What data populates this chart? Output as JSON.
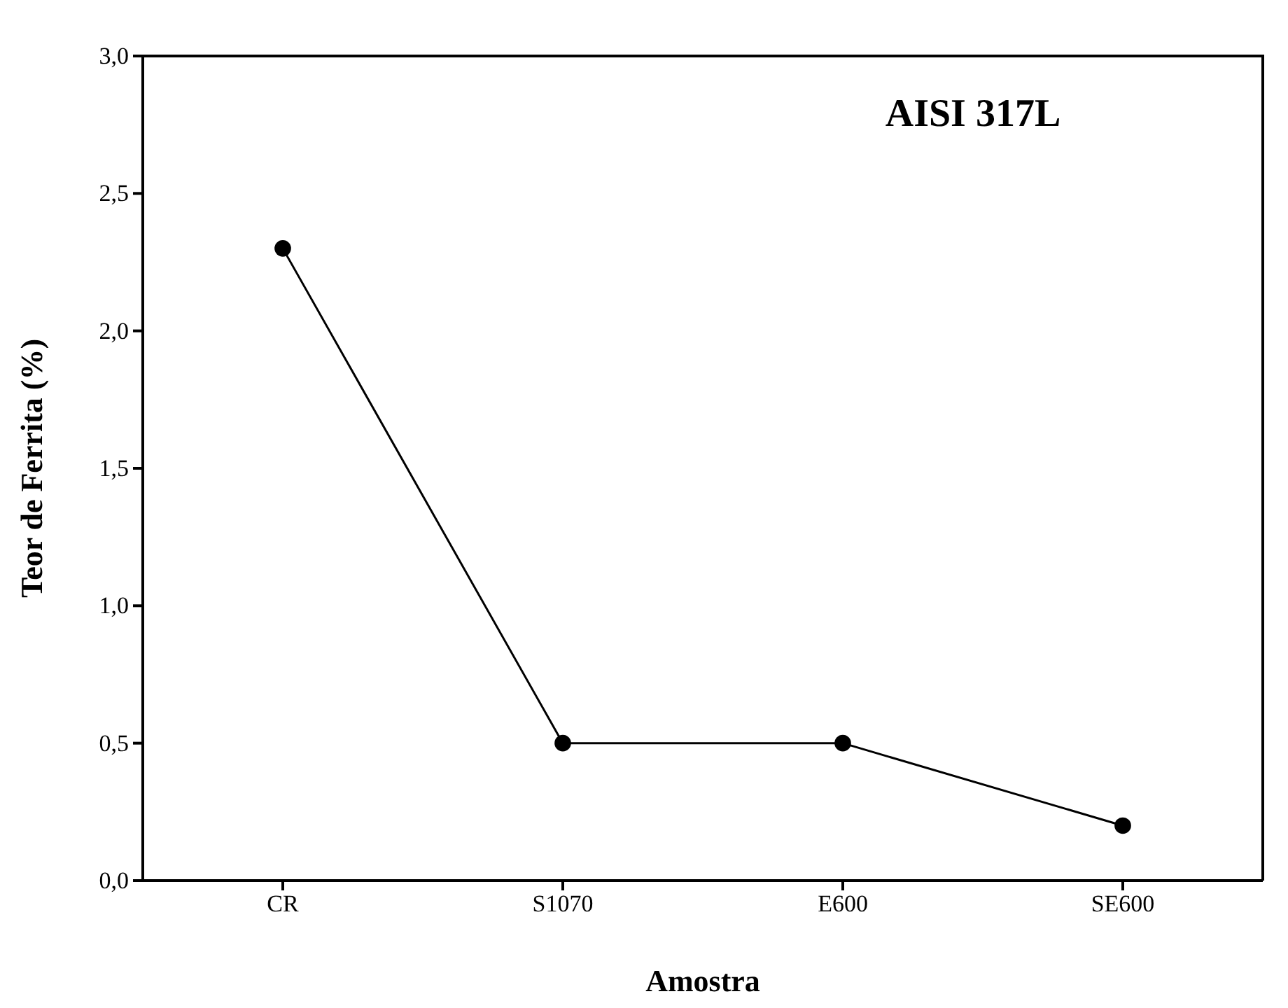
{
  "chart_data": {
    "type": "line",
    "xlabel": "Amostra",
    "ylabel": "Teor de Ferrita (%)",
    "annotations": [
      "AISI 317L"
    ],
    "categories": [
      "CR",
      "S1070",
      "E600",
      "SE600"
    ],
    "series": [
      {
        "color": "#000000",
        "values": [
          2.3,
          0.5,
          0.5,
          0.2
        ]
      }
    ],
    "ylim": [
      0,
      3
    ],
    "yticks": [
      {
        "value": 0,
        "label": "0,0"
      },
      {
        "value": 0.5,
        "label": "0,5"
      },
      {
        "value": 1,
        "label": "1,0"
      },
      {
        "value": 1.5,
        "label": "1,5"
      },
      {
        "value": 2,
        "label": "2,0"
      },
      {
        "value": 2.5,
        "label": "2,5"
      },
      {
        "value": 3,
        "label": "3,0"
      }
    ],
    "marker": "circle",
    "line_style": "solid",
    "grid": false
  }
}
